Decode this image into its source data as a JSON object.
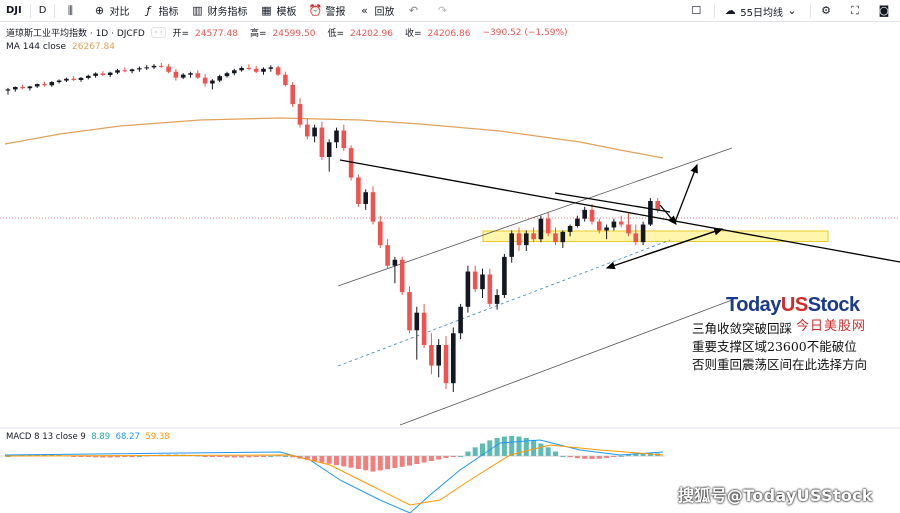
{
  "toolbar": {
    "symbol": "DJI",
    "interval": "D",
    "compare_label": "对比",
    "indicators_label": "指标",
    "financials_label": "财务指标",
    "templates_label": "模板",
    "alert_label": "警报",
    "replay_label": "回放",
    "ma_selector": "55日均线"
  },
  "legend": {
    "title": "道琼斯工业平均指数 · 1D · DJCFD",
    "open_label": "开=",
    "open": "24577.48",
    "high_label": "高=",
    "high": "24599.50",
    "low_label": "低=",
    "low": "24202.96",
    "close_label": "收=",
    "close": "24206.86",
    "change": "−390.52 (−1.59%)",
    "ma_label": "MA 144 close",
    "ma_value": "26267.84"
  },
  "macd": {
    "label": "MACD 8 13 close 9",
    "v1": "8.89",
    "v2": "68.27",
    "v3": "59.38"
  },
  "logo": {
    "part1": "Today",
    "part2": "US",
    "part3": "Stock",
    "sub": "今日美股网"
  },
  "annotation": {
    "line1": "三角收敛突破回踩",
    "line2": "重要支撑区域23600不能破位",
    "line3": "否则重回震荡区间在此选择方向"
  },
  "watermark": "搜狐号@TodayUSStock",
  "colors": {
    "up": "#26a69a",
    "down": "#ef5350",
    "candle_up": "#131722",
    "candle_down": "#ef5350",
    "ma144": "#e0a15a",
    "support_zone": "#fff59d"
  },
  "chart_data": {
    "type": "candlestick",
    "candles": [
      [
        28560,
        28650,
        28420,
        28600
      ],
      [
        28600,
        28700,
        28520,
        28680
      ],
      [
        28680,
        28760,
        28600,
        28640
      ],
      [
        28640,
        28720,
        28560,
        28700
      ],
      [
        28700,
        28800,
        28650,
        28780
      ],
      [
        28780,
        28860,
        28700,
        28740
      ],
      [
        28740,
        28880,
        28690,
        28850
      ],
      [
        28850,
        28940,
        28800,
        28900
      ],
      [
        28900,
        29000,
        28850,
        28960
      ],
      [
        28960,
        29050,
        28880,
        28920
      ],
      [
        28920,
        29020,
        28860,
        28990
      ],
      [
        28990,
        29100,
        28940,
        29060
      ],
      [
        29060,
        29180,
        29000,
        29140
      ],
      [
        29140,
        29220,
        29050,
        29090
      ],
      [
        29090,
        29200,
        29020,
        29170
      ],
      [
        29170,
        29300,
        29120,
        29250
      ],
      [
        29250,
        29350,
        29180,
        29220
      ],
      [
        29220,
        29310,
        29150,
        29280
      ],
      [
        29280,
        29380,
        29200,
        29320
      ],
      [
        29320,
        29420,
        29260,
        29350
      ],
      [
        29350,
        29460,
        29290,
        29400
      ],
      [
        29400,
        29500,
        29330,
        29380
      ],
      [
        29380,
        29470,
        29150,
        29200
      ],
      [
        29200,
        29300,
        28900,
        29000
      ],
      [
        29000,
        29150,
        28950,
        29100
      ],
      [
        29100,
        29200,
        29000,
        29150
      ],
      [
        29150,
        29250,
        28950,
        29000
      ],
      [
        29000,
        29120,
        28700,
        28800
      ],
      [
        28800,
        28950,
        28600,
        28900
      ],
      [
        28900,
        29100,
        28850,
        29050
      ],
      [
        29050,
        29200,
        29000,
        29150
      ],
      [
        29150,
        29300,
        29080,
        29250
      ],
      [
        29250,
        29380,
        29200,
        29330
      ],
      [
        29330,
        29450,
        29250,
        29300
      ],
      [
        29300,
        29400,
        29150,
        29200
      ],
      [
        29200,
        29350,
        29100,
        29300
      ],
      [
        29300,
        29420,
        29200,
        29350
      ],
      [
        29350,
        29400,
        29050,
        29100
      ],
      [
        29100,
        29200,
        28700,
        28750
      ],
      [
        28750,
        28850,
        28000,
        28100
      ],
      [
        28100,
        28300,
        27300,
        27400
      ],
      [
        27400,
        27600,
        26900,
        27000
      ],
      [
        27000,
        27400,
        26800,
        27300
      ],
      [
        27300,
        27500,
        26200,
        26300
      ],
      [
        26300,
        26900,
        25800,
        26800
      ],
      [
        26800,
        27300,
        26600,
        27200
      ],
      [
        27200,
        27400,
        26500,
        26600
      ],
      [
        26600,
        26700,
        25500,
        25600
      ],
      [
        25600,
        25700,
        24600,
        24700
      ],
      [
        24700,
        25200,
        24500,
        25100
      ],
      [
        25100,
        25300,
        24000,
        24100
      ],
      [
        24100,
        24300,
        23200,
        23300
      ],
      [
        23300,
        23500,
        22500,
        22600
      ],
      [
        22600,
        22900,
        22000,
        22800
      ],
      [
        22800,
        22900,
        21600,
        21700
      ],
      [
        21700,
        21900,
        20300,
        20400
      ],
      [
        20400,
        21200,
        19400,
        21000
      ],
      [
        21000,
        21300,
        19800,
        19900
      ],
      [
        19900,
        20300,
        18900,
        19200
      ],
      [
        19200,
        20100,
        18800,
        19900
      ],
      [
        19900,
        20200,
        18400,
        18600
      ],
      [
        18600,
        20500,
        18300,
        20300
      ],
      [
        20300,
        21300,
        20100,
        21200
      ],
      [
        21200,
        22600,
        21000,
        22400
      ],
      [
        22400,
        22600,
        21700,
        21800
      ],
      [
        21800,
        22500,
        21500,
        22300
      ],
      [
        22300,
        22500,
        21200,
        21300
      ],
      [
        21300,
        21800,
        21100,
        21600
      ],
      [
        21600,
        23000,
        21500,
        22900
      ],
      [
        22900,
        23800,
        22700,
        23700
      ],
      [
        23700,
        23900,
        23100,
        23300
      ],
      [
        23300,
        23800,
        23100,
        23700
      ],
      [
        23700,
        23900,
        23400,
        23500
      ],
      [
        23500,
        24300,
        23400,
        24200
      ],
      [
        24200,
        24400,
        23600,
        23700
      ],
      [
        23700,
        23900,
        23300,
        23400
      ],
      [
        23400,
        23800,
        23200,
        23750
      ],
      [
        23750,
        24000,
        23600,
        23950
      ],
      [
        23950,
        24300,
        23900,
        24200
      ],
      [
        24200,
        24600,
        24100,
        24500
      ],
      [
        24500,
        24700,
        24000,
        24100
      ],
      [
        24100,
        24200,
        23700,
        23800
      ],
      [
        23800,
        24000,
        23500,
        23900
      ],
      [
        23900,
        24200,
        23800,
        24100
      ],
      [
        24100,
        24300,
        23900,
        24000
      ],
      [
        24000,
        24400,
        23600,
        23700
      ],
      [
        23700,
        24000,
        23300,
        23400
      ],
      [
        23400,
        24100,
        23300,
        24000
      ],
      [
        24000,
        24900,
        23950,
        24800
      ],
      [
        24800,
        24900,
        24400,
        24500
      ]
    ],
    "ma144_label": "MA 144 close"
  }
}
